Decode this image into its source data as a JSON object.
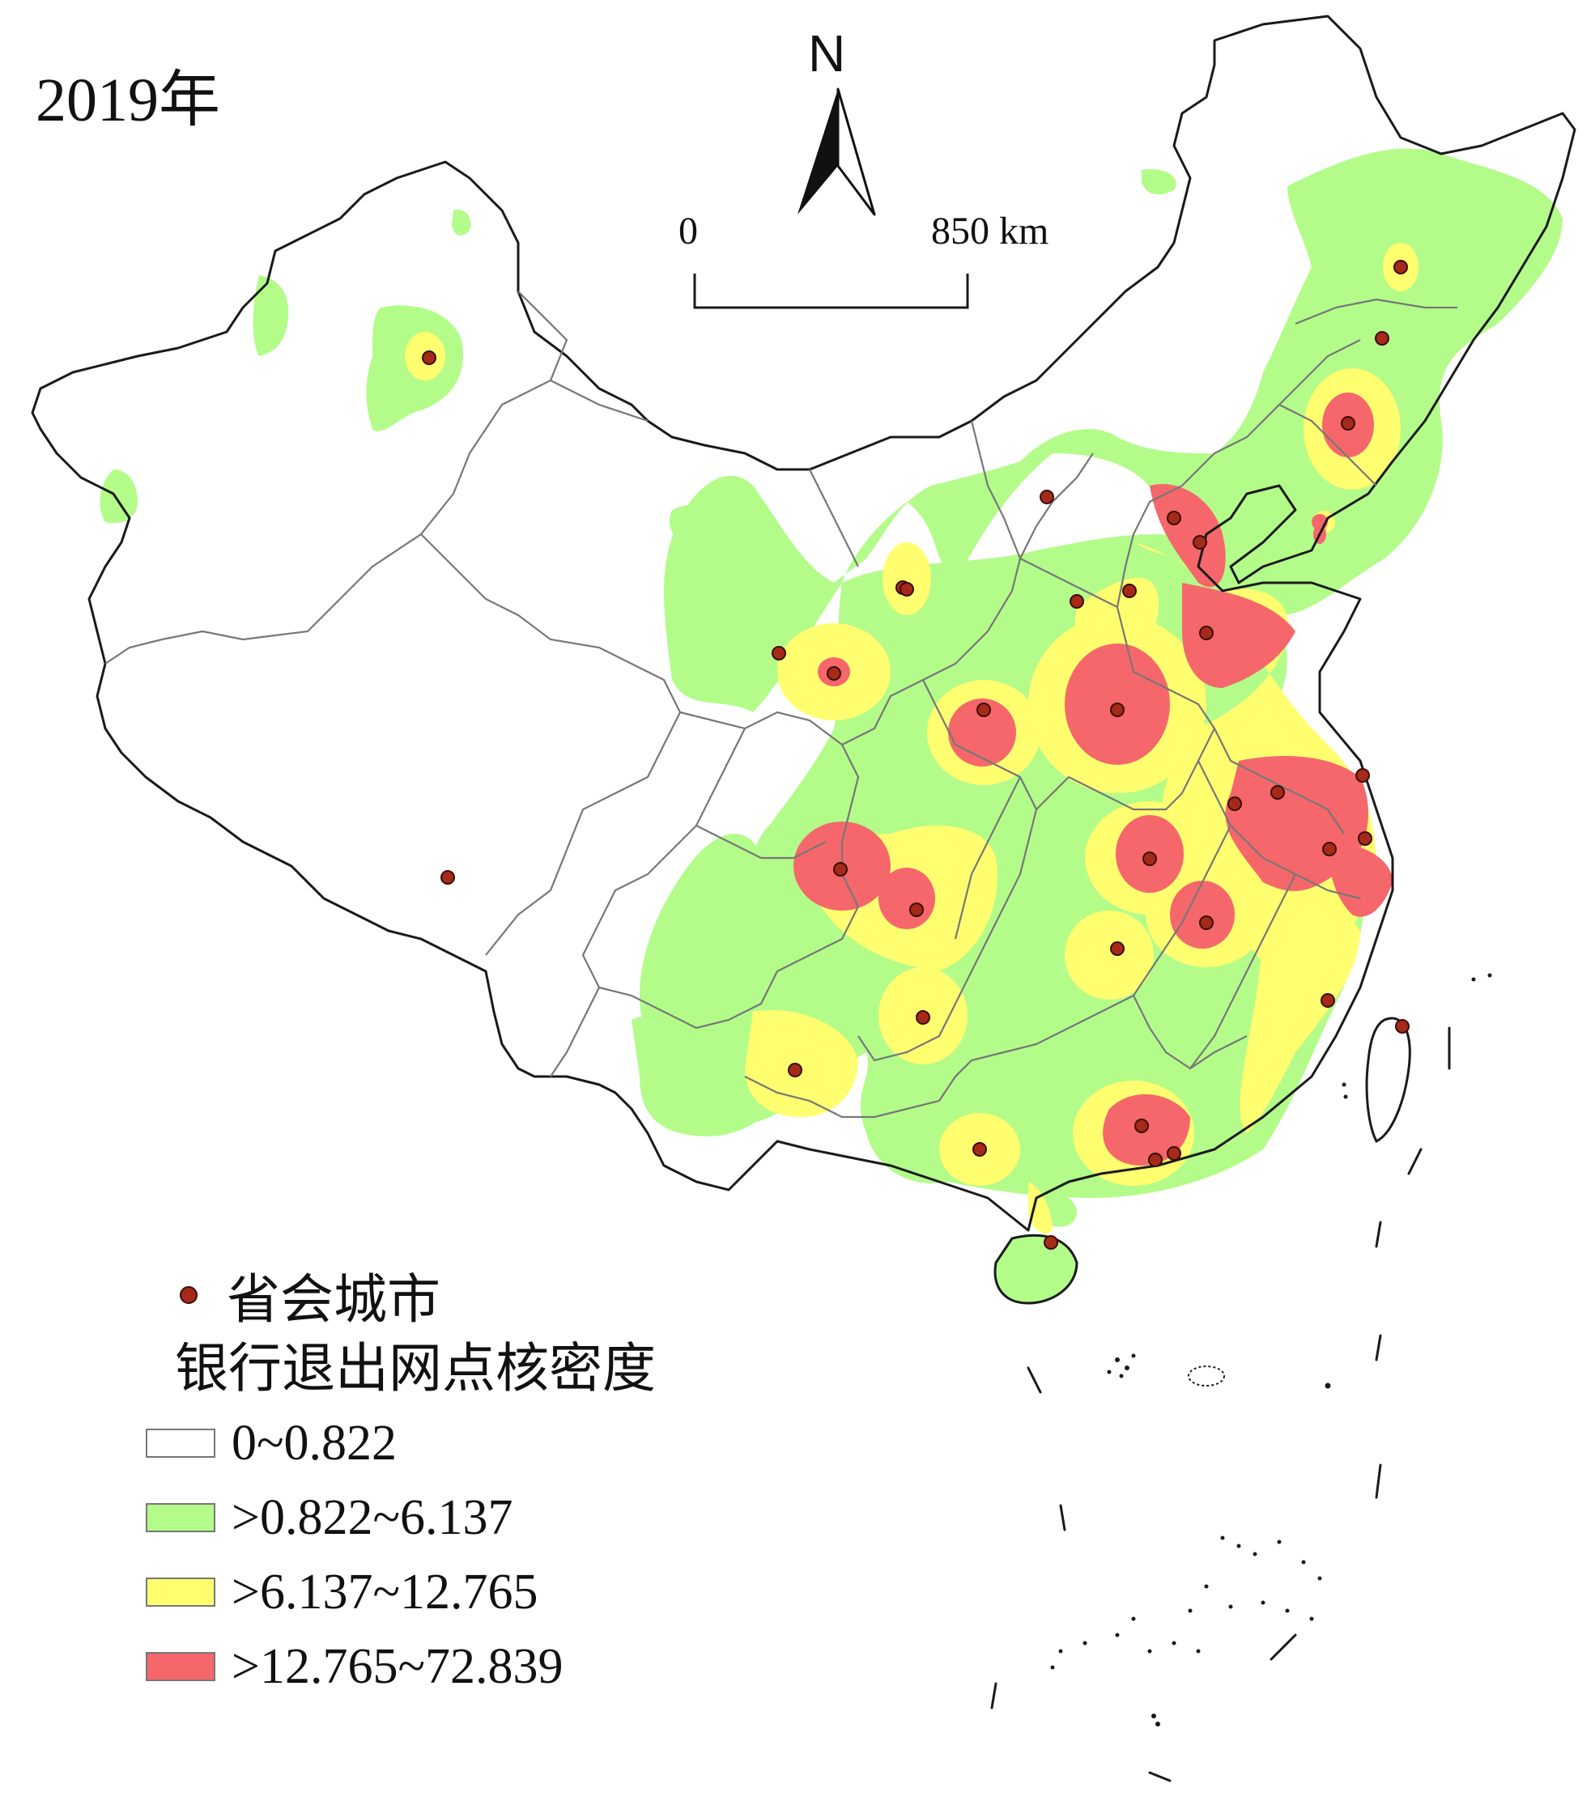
{
  "title": "2019年",
  "north_arrow": {
    "label": "N"
  },
  "scale_bar": {
    "start_label": "0",
    "end_label": "850 km"
  },
  "legend": {
    "point_label": "省会城市",
    "heading": "银行退出网点核密度",
    "point_color": "#a52a1a",
    "classes": [
      {
        "label": "0~0.822",
        "color": "#ffffff"
      },
      {
        "label": ">0.822~6.137",
        "color": "#b3fc8a"
      },
      {
        "label": ">6.137~12.765",
        "color": "#ffff70"
      },
      {
        "label": ">12.765~72.839",
        "color": "#f5676a"
      }
    ]
  }
}
